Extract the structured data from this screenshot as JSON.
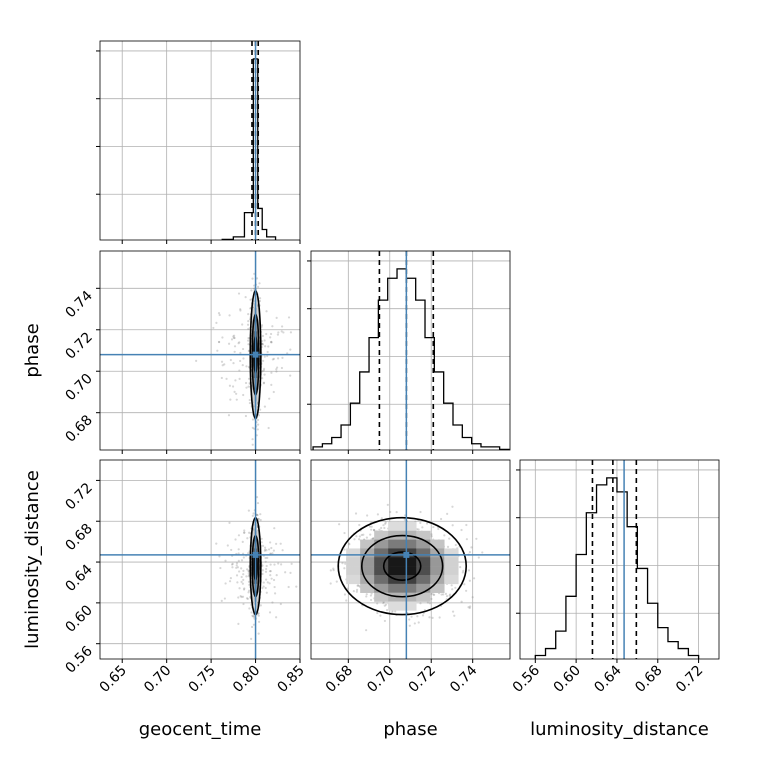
{
  "chart_data": {
    "type": "corner",
    "parameters": [
      "geocent_time",
      "phase",
      "luminosity_distance"
    ],
    "truths": {
      "geocent_time": 0.8,
      "phase": 0.708,
      "luminosity_distance": 0.647
    },
    "axis_ranges": {
      "geocent_time": [
        0.625,
        0.85
      ],
      "phase": [
        0.662,
        0.758
      ],
      "luminosity_distance": [
        0.545,
        0.74
      ]
    },
    "ticks": {
      "geocent_time": [
        "0.65",
        "0.70",
        "0.75",
        "0.80",
        "0.85"
      ],
      "phase": [
        "0.68",
        "0.70",
        "0.72",
        "0.74"
      ],
      "luminosity_distance": [
        "0.56",
        "0.60",
        "0.64",
        "0.68",
        "0.72"
      ]
    },
    "grid": true,
    "marginals": [
      {
        "parameter": "geocent_time",
        "quantiles": [
          0.796,
          0.8,
          0.803
        ],
        "bin_edges": [
          0.7625,
          0.775,
          0.7875,
          0.7925,
          0.7975,
          0.8025,
          0.8075,
          0.8125,
          0.8225
        ],
        "counts": [
          0.3,
          1.5,
          13,
          13,
          86,
          15,
          5,
          1.5
        ]
      },
      {
        "parameter": "phase",
        "quantiles": [
          0.695,
          0.708,
          0.721
        ],
        "bin_edges": [
          0.663,
          0.6675,
          0.672,
          0.6765,
          0.681,
          0.6855,
          0.69,
          0.6945,
          0.699,
          0.7035,
          0.708,
          0.7125,
          0.717,
          0.7215,
          0.726,
          0.7305,
          0.735,
          0.7395,
          0.744,
          0.7485,
          0.753,
          0.7575
        ],
        "counts": [
          1,
          2,
          4,
          8,
          15,
          25,
          36,
          48,
          55,
          58,
          55,
          48,
          36,
          25,
          15,
          8,
          4,
          2,
          1,
          1,
          0.2
        ]
      },
      {
        "parameter": "luminosity_distance",
        "quantiles": [
          0.616,
          0.636,
          0.659
        ],
        "bin_edges": [
          0.56,
          0.57,
          0.58,
          0.59,
          0.6,
          0.61,
          0.62,
          0.63,
          0.64,
          0.65,
          0.66,
          0.67,
          0.68,
          0.69,
          0.7,
          0.71,
          0.72
        ],
        "counts": [
          1,
          3,
          8,
          18,
          30,
          42,
          50,
          52,
          48,
          38,
          26,
          16,
          9,
          5,
          3,
          1
        ]
      }
    ],
    "joint": [
      {
        "x": "geocent_time",
        "y": "phase",
        "center": [
          0.8,
          0.708
        ],
        "sigma": [
          0.0025,
          0.013
        ]
      },
      {
        "x": "geocent_time",
        "y": "luminosity_distance",
        "center": [
          0.8,
          0.636
        ],
        "sigma": [
          0.0025,
          0.02
        ]
      },
      {
        "x": "phase",
        "y": "luminosity_distance",
        "center": [
          0.706,
          0.636
        ],
        "sigma": [
          0.013,
          0.02
        ]
      }
    ]
  }
}
